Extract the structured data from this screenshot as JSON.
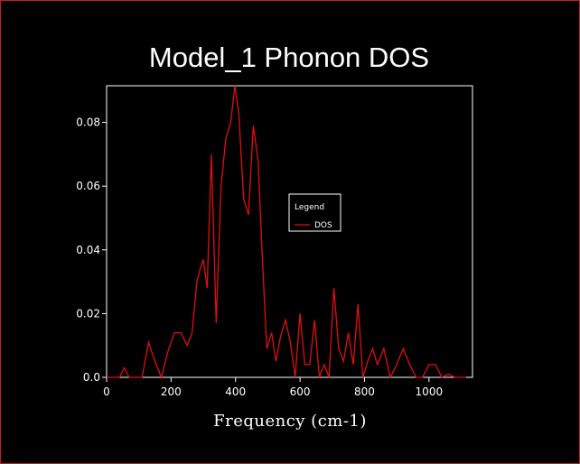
{
  "chart_data": {
    "type": "line",
    "title": "Model_1 Phonon DOS",
    "xlabel": "Frequency (cm-1)",
    "ylabel": "",
    "xlim": [
      0,
      1135
    ],
    "ylim": [
      0,
      0.0915
    ],
    "xticks": [
      0,
      200,
      400,
      600,
      800,
      1000
    ],
    "yticks": [
      0.0,
      0.02,
      0.04,
      0.06,
      0.08
    ],
    "ytick_labels": [
      "0.0",
      "0.02",
      "0.04",
      "0.06",
      "0.08"
    ],
    "legend": {
      "title": "Legend",
      "position": "center-right"
    },
    "series": [
      {
        "name": "DOS",
        "color": "#e01010",
        "x": [
          0,
          40,
          55,
          70,
          90,
          110,
          130,
          150,
          170,
          190,
          210,
          230,
          250,
          265,
          280,
          290,
          300,
          312,
          325,
          340,
          355,
          370,
          385,
          398,
          410,
          425,
          440,
          455,
          470,
          483,
          497,
          512,
          525,
          540,
          555,
          570,
          585,
          600,
          615,
          630,
          645,
          660,
          675,
          690,
          705,
          720,
          735,
          750,
          765,
          780,
          795,
          810,
          825,
          840,
          860,
          880,
          900,
          920,
          940,
          960,
          980,
          1000,
          1020,
          1040,
          1060,
          1080,
          1100,
          1115
        ],
        "y": [
          0.0,
          0.0,
          0.003,
          0.0,
          0.0,
          0.0,
          0.011,
          0.005,
          0.0,
          0.008,
          0.014,
          0.014,
          0.01,
          0.014,
          0.03,
          0.034,
          0.037,
          0.028,
          0.07,
          0.017,
          0.06,
          0.075,
          0.08,
          0.0915,
          0.083,
          0.056,
          0.051,
          0.079,
          0.068,
          0.038,
          0.009,
          0.014,
          0.005,
          0.013,
          0.018,
          0.011,
          0.0,
          0.02,
          0.004,
          0.004,
          0.018,
          0.0,
          0.004,
          0.0,
          0.028,
          0.009,
          0.005,
          0.014,
          0.004,
          0.023,
          0.0,
          0.005,
          0.009,
          0.004,
          0.009,
          0.0,
          0.004,
          0.009,
          0.004,
          0.0,
          0.0,
          0.004,
          0.004,
          0.0,
          0.001,
          0.0,
          0.0,
          0.0
        ]
      }
    ]
  }
}
